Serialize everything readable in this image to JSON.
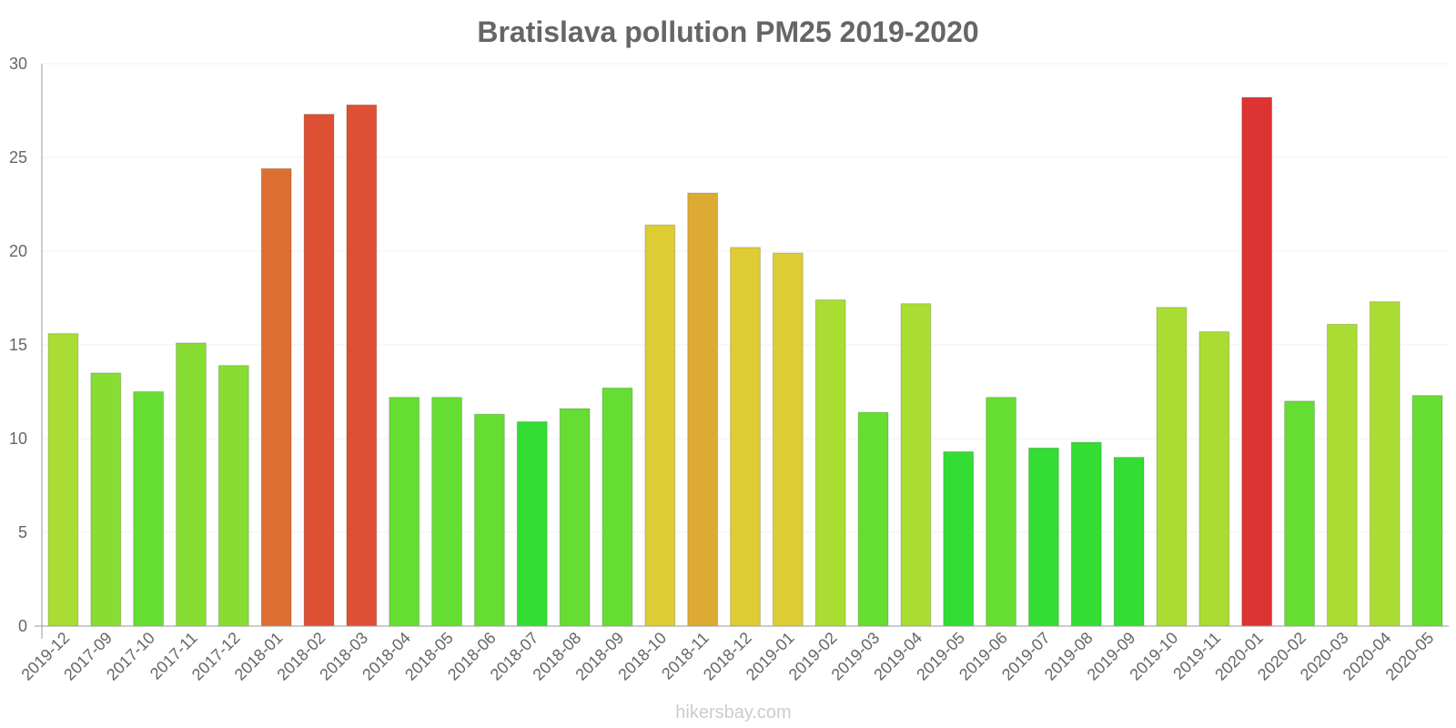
{
  "chart_data": {
    "type": "bar",
    "title": "Bratislava pollution PM25 2019-2020",
    "xlabel": "",
    "ylabel": "",
    "ylim": [
      0,
      30
    ],
    "yticks": [
      0,
      5,
      10,
      15,
      20,
      25,
      30
    ],
    "grid": true,
    "categories": [
      "2019-12",
      "2017-09",
      "2017-10",
      "2017-11",
      "2017-12",
      "2018-01",
      "2018-02",
      "2018-03",
      "2018-04",
      "2018-05",
      "2018-06",
      "2018-07",
      "2018-08",
      "2018-09",
      "2018-10",
      "2018-11",
      "2018-12",
      "2019-01",
      "2019-02",
      "2019-03",
      "2019-04",
      "2019-05",
      "2019-06",
      "2019-07",
      "2019-08",
      "2019-09",
      "2019-10",
      "2019-11",
      "2020-01",
      "2020-02",
      "2020-03",
      "2020-04",
      "2020-05"
    ],
    "values": [
      15.6,
      13.5,
      12.5,
      15.1,
      13.9,
      24.4,
      27.3,
      27.8,
      12.2,
      12.2,
      11.3,
      10.9,
      11.6,
      12.7,
      21.4,
      23.1,
      20.2,
      19.9,
      17.4,
      11.4,
      17.2,
      9.3,
      12.2,
      9.5,
      9.8,
      9.0,
      17.0,
      15.7,
      28.2,
      12.0,
      16.1,
      17.3,
      12.3
    ],
    "colors": [
      "#aadd33",
      "#88dd33",
      "#66dd33",
      "#88dd33",
      "#88dd33",
      "#dd6f33",
      "#dd5033",
      "#dd5033",
      "#66dd33",
      "#66dd33",
      "#66dd33",
      "#33dd33",
      "#66dd33",
      "#66dd33",
      "#ddcc33",
      "#ddaa33",
      "#ddcc33",
      "#ddcc33",
      "#aadd33",
      "#66dd33",
      "#aadd33",
      "#33dd33",
      "#66dd33",
      "#33dd33",
      "#33dd33",
      "#33dd33",
      "#aadd33",
      "#aadd33",
      "#dd3333",
      "#66dd33",
      "#aadd33",
      "#aadd33",
      "#66dd33"
    ],
    "legend": "none"
  },
  "watermark": "hikersbay.com"
}
